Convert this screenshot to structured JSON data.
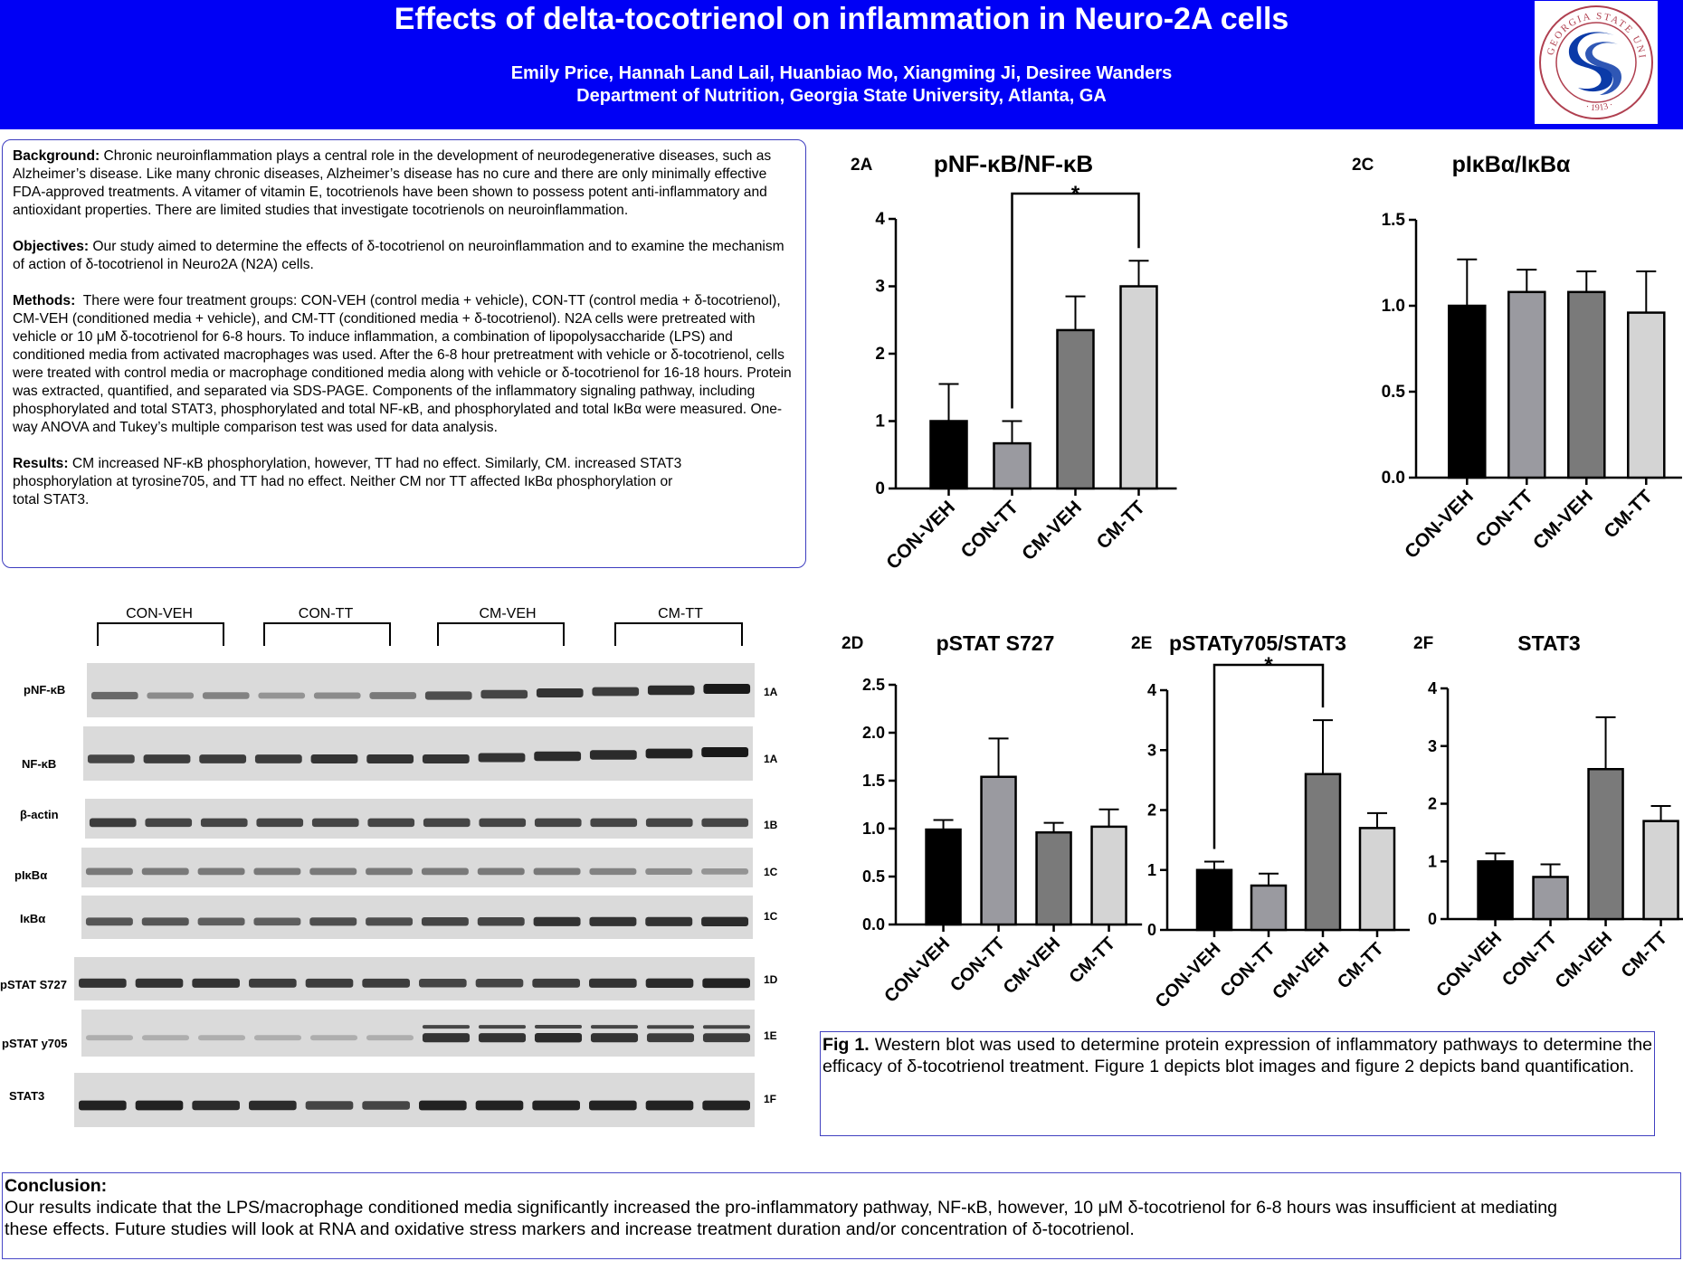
{
  "header": {
    "title": "Effects of delta-tocotrienol on inflammation in Neuro-2A cells",
    "authors": "Emily Price, Hannah Land Lail, Huanbiao Mo, Xiangming Ji, Desiree Wanders",
    "department": "Department of Nutrition, Georgia State University, Atlanta, GA",
    "logo_text_top": "GEORGIA STATE UNIVERSITY",
    "logo_text_bottom": "1913",
    "brand_blue": "#0000f5"
  },
  "abstract": {
    "background_label": "Background:",
    "background_text": "Chronic neuroinflammation plays a central role in the development of neurodegenerative diseases, such as Alzheimer’s disease. Like many chronic diseases, Alzheimer’s disease has no cure and there are only minimally effective FDA-approved treatments. A vitamer of vitamin E, tocotrienols have been shown to possess potent anti-inflammatory and antioxidant properties. There are limited studies that investigate tocotrienols on neuroinflammation.",
    "objectives_label": "Objectives:",
    "objectives_text": "Our study aimed to determine the effects of δ-tocotrienol on neuroinflammation and to examine the mechanism of action of δ-tocotrienol in Neuro2A (N2A) cells.",
    "methods_label": "Methods:",
    "methods_text": "There were four treatment groups: CON-VEH (control media + vehicle), CON-TT (control media + δ-tocotrienol), CM-VEH (conditioned media + vehicle), and CM-TT (conditioned media + δ-tocotrienol). N2A cells were pretreated with vehicle or 10 μM δ-tocotrienol for 6-8 hours. To induce inflammation, a combination of lipopolysaccharide (LPS) and conditioned media from activated macrophages was used. After the 6-8 hour pretreatment with vehicle or δ-tocotrienol, cells were treated with control media or macrophage conditioned media along with vehicle or δ-tocotrienol for 16-18 hours. Protein was extracted, quantified, and separated via SDS-PAGE. Components of the inflammatory signaling pathway, including phosphorylated and total STAT3, phosphorylated and total NF-κB, and phosphorylated and total IκBα were measured. One-way ANOVA and Tukey’s multiple comparison test was used for data analysis.",
    "results_label": "Results:",
    "results_text": "CM increased NF-κB phosphorylation, however, TT had no effect. Similarly, CM. increased STAT3 phosphorylation at tyrosine705, and TT had no effect. Neither CM nor TT affected IκBα phosphorylation or total STAT3."
  },
  "blot": {
    "groups": [
      "CON-VEH",
      "CON-TT",
      "CM-VEH",
      "CM-TT"
    ],
    "rows": [
      {
        "label": "pNF-κB",
        "fig": "1A",
        "intensity": [
          0.55,
          0.35,
          0.4,
          0.3,
          0.35,
          0.45,
          0.7,
          0.75,
          0.85,
          0.8,
          0.9,
          1.0
        ]
      },
      {
        "label": "NF-κB",
        "fig": "1A",
        "intensity": [
          0.75,
          0.8,
          0.8,
          0.8,
          0.85,
          0.85,
          0.85,
          0.85,
          0.9,
          0.9,
          0.95,
          1.0
        ]
      },
      {
        "label": "β-actin",
        "fig": "1B",
        "intensity": [
          0.8,
          0.75,
          0.75,
          0.75,
          0.75,
          0.75,
          0.75,
          0.75,
          0.75,
          0.75,
          0.75,
          0.75
        ]
      },
      {
        "label": "pIκBα",
        "fig": "1C",
        "intensity": [
          0.45,
          0.45,
          0.45,
          0.45,
          0.45,
          0.45,
          0.45,
          0.45,
          0.45,
          0.4,
          0.35,
          0.3
        ]
      },
      {
        "label": "IκBα",
        "fig": "1C",
        "intensity": [
          0.65,
          0.65,
          0.6,
          0.6,
          0.7,
          0.7,
          0.75,
          0.75,
          0.85,
          0.85,
          0.85,
          0.9
        ]
      },
      {
        "label": "pSTAT S727",
        "fig": "1D",
        "intensity": [
          0.85,
          0.85,
          0.85,
          0.8,
          0.8,
          0.8,
          0.75,
          0.75,
          0.8,
          0.85,
          0.9,
          0.95
        ]
      },
      {
        "label": "pSTAT y705",
        "fig": "1E",
        "intensity": [
          0.15,
          0.15,
          0.15,
          0.15,
          0.15,
          0.15,
          0.85,
          0.85,
          0.9,
          0.85,
          0.8,
          0.8
        ]
      },
      {
        "label": "STAT3",
        "fig": "1F",
        "intensity": [
          0.95,
          0.95,
          0.9,
          0.9,
          0.75,
          0.75,
          0.95,
          0.95,
          0.95,
          0.95,
          0.95,
          0.95
        ]
      }
    ]
  },
  "chart_data": [
    {
      "id": "2A",
      "type": "bar",
      "title": "pNF-κB/NF-κB",
      "categories": [
        "CON-VEH",
        "CON-TT",
        "CM-VEH",
        "CM-TT"
      ],
      "values": [
        1.0,
        0.67,
        2.35,
        3.0
      ],
      "errors": [
        0.55,
        0.33,
        0.5,
        0.38
      ],
      "colors": [
        "#000000",
        "#9a9aa0",
        "#7a7a7a",
        "#d4d4d4"
      ],
      "ylim": [
        0,
        4
      ],
      "yticks": [
        "0",
        "1",
        "2",
        "3",
        "4"
      ],
      "significance": {
        "from": 1,
        "to": 3,
        "label": "*"
      }
    },
    {
      "id": "2C",
      "type": "bar",
      "title": "pIκBα/IκBα",
      "categories": [
        "CON-VEH",
        "CON-TT",
        "CM-VEH",
        "CM-TT"
      ],
      "values": [
        1.0,
        1.08,
        1.08,
        0.96
      ],
      "errors": [
        0.27,
        0.13,
        0.12,
        0.24
      ],
      "colors": [
        "#000000",
        "#9a9aa0",
        "#7a7a7a",
        "#d4d4d4"
      ],
      "ylim": [
        0,
        1.5
      ],
      "yticks": [
        "0.0",
        "0.5",
        "1.0",
        "1.5"
      ]
    },
    {
      "id": "2D",
      "type": "bar",
      "title": "pSTAT S727",
      "categories": [
        "CON-VEH",
        "CON-TT",
        "CM-VEH",
        "CM-TT"
      ],
      "values": [
        0.99,
        1.54,
        0.96,
        1.02
      ],
      "errors": [
        0.1,
        0.4,
        0.1,
        0.18
      ],
      "colors": [
        "#000000",
        "#9a9aa0",
        "#7a7a7a",
        "#d4d4d4"
      ],
      "ylim": [
        0,
        2.5
      ],
      "yticks": [
        "0.0",
        "0.5",
        "1.0",
        "1.5",
        "2.0",
        "2.5"
      ]
    },
    {
      "id": "2E",
      "type": "bar",
      "title": "pSTATy705/STAT3",
      "categories": [
        "CON-VEH",
        "CON-TT",
        "CM-VEH",
        "CM-TT"
      ],
      "values": [
        1.0,
        0.74,
        2.6,
        1.7
      ],
      "errors": [
        0.14,
        0.2,
        0.9,
        0.25
      ],
      "colors": [
        "#000000",
        "#9a9aa0",
        "#7a7a7a",
        "#d4d4d4"
      ],
      "ylim": [
        0,
        4
      ],
      "yticks": [
        "0",
        "1",
        "2",
        "3",
        "4"
      ],
      "significance": {
        "from": 0,
        "to": 2,
        "label": "*"
      }
    },
    {
      "id": "2F",
      "type": "bar",
      "title": "STAT3",
      "categories": [
        "CON-VEH",
        "CON-TT",
        "CM-VEH",
        "CM-TT"
      ],
      "values": [
        1.0,
        0.73,
        2.6,
        1.7
      ],
      "errors": [
        0.14,
        0.22,
        0.9,
        0.26
      ],
      "colors": [
        "#000000",
        "#9a9aa0",
        "#7a7a7a",
        "#d4d4d4"
      ],
      "ylim": [
        0,
        4
      ],
      "yticks": [
        "0",
        "1",
        "2",
        "3",
        "4"
      ]
    }
  ],
  "caption": {
    "label": "Fig 1.",
    "text": "Western blot was used to determine protein expression of inflammatory pathways to determine the efficacy of δ-tocotrienol treatment. Figure 1 depicts blot images and figure 2 depicts band quantification."
  },
  "conclusion": {
    "label": "Conclusion:",
    "text": "Our results indicate that the LPS/macrophage conditioned media significantly increased the pro-inflammatory pathway, NF-κB, however, 10 μM δ-tocotrienol for 6-8 hours was insufficient at mediating these effects. Future studies will look at RNA and oxidative stress markers and increase treatment duration and/or concentration of δ-tocotrienol."
  }
}
